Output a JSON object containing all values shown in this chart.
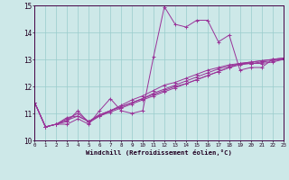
{
  "xlabel": "Windchill (Refroidissement éolien,°C)",
  "bg_color": "#cde8e8",
  "line_color": "#993399",
  "grid_color": "#99cccc",
  "xmin": 0,
  "xmax": 23,
  "ymin": 10,
  "ymax": 15,
  "yticks": [
    10,
    11,
    12,
    13,
    14,
    15
  ],
  "xticks": [
    0,
    1,
    2,
    3,
    4,
    5,
    6,
    7,
    8,
    9,
    10,
    11,
    12,
    13,
    14,
    15,
    16,
    17,
    18,
    19,
    20,
    21,
    22,
    23
  ],
  "series": [
    [
      11.4,
      10.5,
      10.6,
      10.6,
      10.8,
      10.6,
      11.1,
      11.55,
      11.1,
      11.0,
      11.1,
      13.1,
      14.95,
      14.3,
      14.2,
      14.45,
      14.45,
      13.65,
      13.9,
      12.6,
      12.7,
      12.7,
      13.0,
      13.0
    ],
    [
      11.4,
      10.5,
      10.6,
      10.7,
      11.1,
      10.65,
      10.9,
      11.05,
      11.2,
      11.35,
      11.5,
      11.65,
      11.8,
      11.95,
      12.1,
      12.25,
      12.4,
      12.55,
      12.7,
      12.85,
      12.85,
      12.85,
      12.9,
      13.0
    ],
    [
      11.4,
      10.5,
      10.6,
      10.75,
      10.9,
      10.7,
      10.9,
      11.1,
      11.3,
      11.5,
      11.65,
      11.85,
      12.05,
      12.15,
      12.3,
      12.45,
      12.6,
      12.7,
      12.8,
      12.85,
      12.9,
      12.95,
      13.0,
      13.05
    ],
    [
      11.4,
      10.5,
      10.6,
      10.8,
      11.0,
      10.7,
      10.95,
      11.1,
      11.25,
      11.4,
      11.55,
      11.75,
      11.9,
      12.05,
      12.2,
      12.35,
      12.5,
      12.65,
      12.75,
      12.85,
      12.9,
      12.95,
      13.0,
      13.05
    ],
    [
      11.4,
      10.5,
      10.6,
      10.85,
      10.9,
      10.7,
      10.95,
      11.1,
      11.25,
      11.4,
      11.55,
      11.7,
      11.85,
      12.0,
      12.1,
      12.25,
      12.4,
      12.55,
      12.7,
      12.8,
      12.85,
      12.9,
      12.95,
      13.0
    ]
  ]
}
